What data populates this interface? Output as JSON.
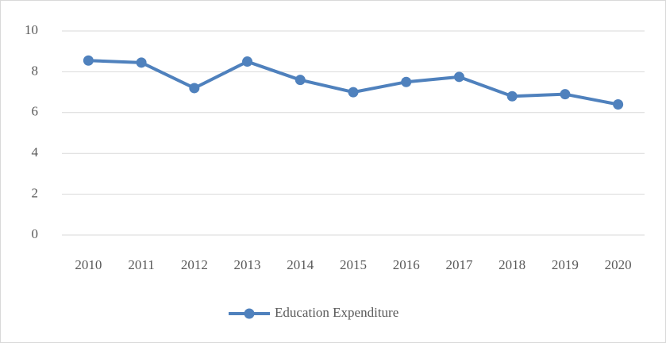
{
  "chart_data": {
    "type": "line",
    "categories": [
      "2010",
      "2011",
      "2012",
      "2013",
      "2014",
      "2015",
      "2016",
      "2017",
      "2018",
      "2019",
      "2020"
    ],
    "series": [
      {
        "name": "Education Expenditure",
        "color": "#4f81bd",
        "values": [
          8.55,
          8.45,
          7.2,
          8.5,
          7.6,
          7.0,
          7.5,
          7.75,
          6.8,
          6.9,
          6.4
        ]
      }
    ],
    "ylim": [
      0,
      10
    ],
    "yticks": [
      0,
      2,
      4,
      6,
      8,
      10
    ],
    "grid": true,
    "legend": "bottom"
  }
}
